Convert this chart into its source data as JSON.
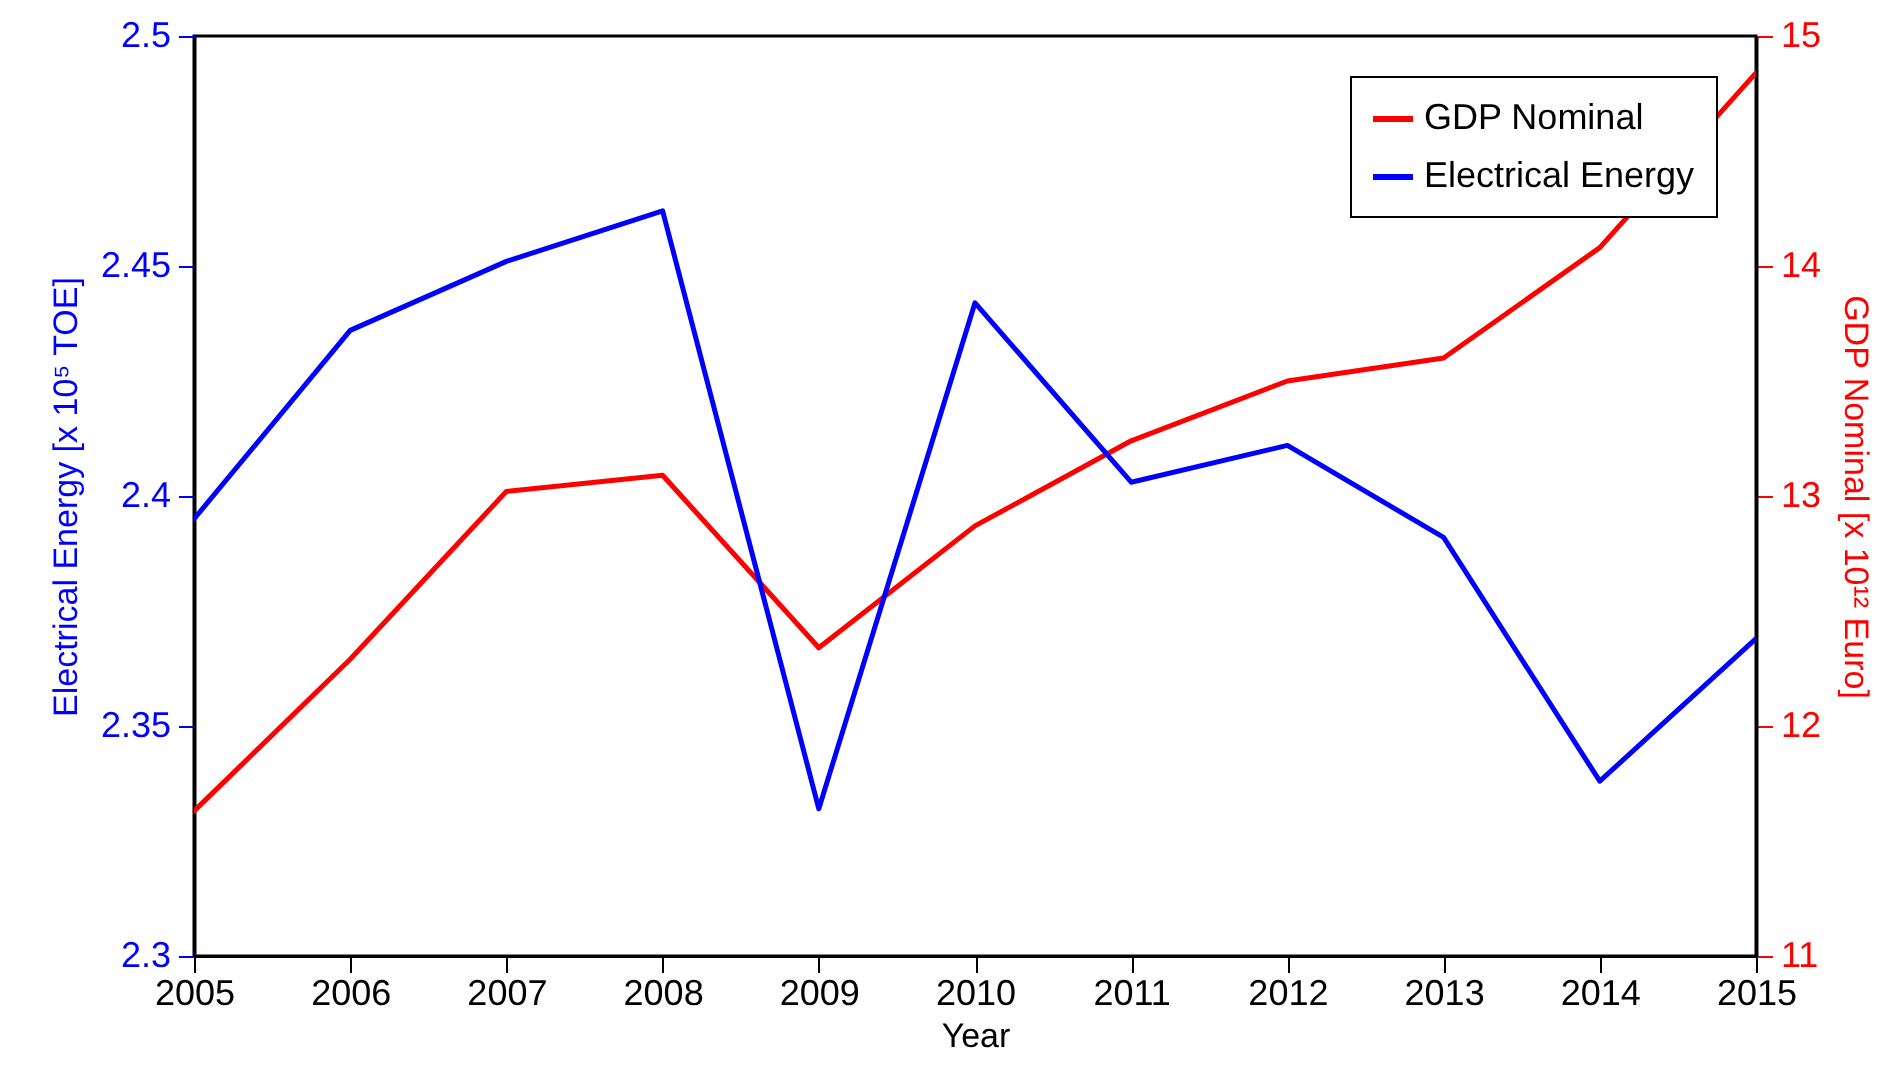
{
  "chart_data": {
    "type": "line",
    "xlabel": "Year",
    "ylabel": "Electrical Energy [x 10⁵ TOE]",
    "y2label": "GDP Nominal [x 10¹² Euro]",
    "x": [
      2005,
      2006,
      2007,
      2008,
      2009,
      2010,
      2011,
      2012,
      2013,
      2014,
      2015
    ],
    "xlim": [
      2005,
      2015
    ],
    "xticks": [
      2005,
      2006,
      2007,
      2008,
      2009,
      2010,
      2011,
      2012,
      2013,
      2014,
      2015
    ],
    "ylim": [
      2.3,
      2.5
    ],
    "yticks": [
      2.3,
      2.35,
      2.4,
      2.45,
      2.5
    ],
    "y2lim": [
      11,
      15
    ],
    "y2ticks": [
      11,
      12,
      13,
      14,
      15
    ],
    "series": [
      {
        "name": "GDP Nominal",
        "color": "#ff0000",
        "axis": "y2",
        "values": [
          11.63,
          12.29,
          13.02,
          13.09,
          12.34,
          12.87,
          13.24,
          13.5,
          13.6,
          14.08,
          14.84
        ]
      },
      {
        "name": "Electrical Energy",
        "color": "#0000ff",
        "values": [
          2.395,
          2.436,
          2.451,
          2.462,
          2.332,
          2.442,
          2.403,
          2.411,
          2.391,
          2.338,
          2.369
        ]
      }
    ],
    "legend": "top right",
    "grid": false,
    "line_style": "solid"
  }
}
